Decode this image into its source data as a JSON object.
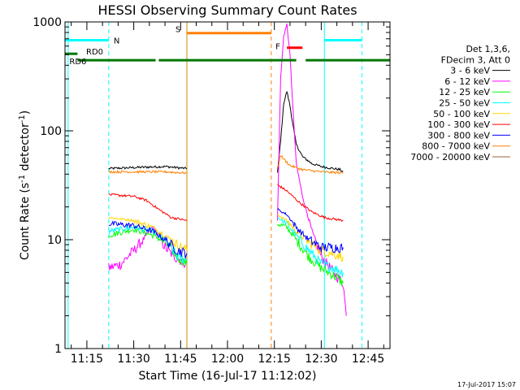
{
  "chart_data": {
    "type": "line",
    "title": "HESSI Observing Summary Count Rates",
    "xlabel": "Start Time (16-Jul-17 11:12:02)",
    "ylabel": "Count Rate (s⁻¹ detector⁻¹)",
    "ylabel_parts": {
      "main": "Count Rate (s",
      "sup1": "-1",
      "mid": " detector",
      "sup2": "-1",
      "end": ")"
    },
    "xlim": [
      "11:08",
      "12:52"
    ],
    "ylim": [
      1,
      1000
    ],
    "yscale": "log",
    "xticks": [
      "11:15",
      "11:30",
      "11:45",
      "12:00",
      "12:15",
      "12:30",
      "12:45"
    ],
    "yticks": [
      "1",
      "10",
      "100",
      "1000"
    ],
    "legend": {
      "placement": "right",
      "header": [
        "Det 1,3,6,",
        "FDecim 3, Att 0"
      ],
      "entries": [
        {
          "label": "3 - 6 keV",
          "color": "#000000"
        },
        {
          "label": "6 - 12 keV",
          "color": "#ff00ff"
        },
        {
          "label": "12 - 25 keV",
          "color": "#00ff00"
        },
        {
          "label": "25 - 50 keV",
          "color": "#00ffff"
        },
        {
          "label": "50 - 100 keV",
          "color": "#ffd700"
        },
        {
          "label": "100 - 300 keV",
          "color": "#ff0000"
        },
        {
          "label": "300 - 800 keV",
          "color": "#0000ff"
        },
        {
          "label": "800 - 7000 keV",
          "color": "#ff8000"
        },
        {
          "label": "7000 - 20000 keV",
          "color": "#996633"
        }
      ]
    },
    "series": [
      {
        "name": "3 - 6 keV",
        "color": "#000000",
        "segments": [
          [
            [
              "11:22",
              45
            ],
            [
              "11:30",
              46
            ],
            [
              "11:40",
              47
            ],
            [
              "11:47",
              45
            ]
          ],
          [
            [
              "12:16",
              42
            ],
            [
              "12:17",
              80
            ],
            [
              "12:18",
              180
            ],
            [
              "12:19",
              230
            ],
            [
              "12:20",
              170
            ],
            [
              "12:21",
              110
            ],
            [
              "12:22",
              75
            ],
            [
              "12:24",
              58
            ],
            [
              "12:27",
              50
            ],
            [
              "12:30",
              47
            ],
            [
              "12:36",
              44
            ],
            [
              "12:37",
              42
            ]
          ]
        ]
      },
      {
        "name": "6 - 12 keV",
        "color": "#ff00ff",
        "segments": [
          [
            [
              "11:22",
              5.5
            ],
            [
              "11:26",
              6
            ],
            [
              "11:30",
              8
            ],
            [
              "11:33",
              10
            ],
            [
              "11:36",
              13
            ],
            [
              "11:38",
              11
            ],
            [
              "11:40",
              8.5
            ],
            [
              "11:43",
              7
            ],
            [
              "11:47",
              6
            ]
          ],
          [
            [
              "12:16",
              15
            ],
            [
              "12:17",
              300
            ],
            [
              "12:18",
              750
            ],
            [
              "12:19",
              950
            ],
            [
              "12:20",
              500
            ],
            [
              "12:21",
              150
            ],
            [
              "12:22",
              50
            ],
            [
              "12:24",
              25
            ],
            [
              "12:27",
              12
            ],
            [
              "12:30",
              7
            ],
            [
              "12:34",
              5
            ],
            [
              "12:37",
              4
            ],
            [
              "12:38",
              2
            ]
          ]
        ]
      },
      {
        "name": "12 - 25 keV",
        "color": "#00ff00",
        "segments": [
          [
            [
              "11:22",
              11
            ],
            [
              "11:30",
              12.5
            ],
            [
              "11:36",
              11
            ],
            [
              "11:40",
              9.5
            ],
            [
              "11:44",
              7
            ],
            [
              "11:47",
              6
            ]
          ],
          [
            [
              "12:16",
              14
            ],
            [
              "12:19",
              13
            ],
            [
              "12:22",
              10
            ],
            [
              "12:26",
              7
            ],
            [
              "12:30",
              5.5
            ],
            [
              "12:35",
              4.5
            ],
            [
              "12:37",
              4
            ]
          ]
        ]
      },
      {
        "name": "25 - 50 keV",
        "color": "#00ffff",
        "segments": [
          [
            [
              "11:22",
              12
            ],
            [
              "11:30",
              13
            ],
            [
              "11:36",
              12
            ],
            [
              "11:40",
              10
            ],
            [
              "11:44",
              7
            ],
            [
              "11:47",
              6.5
            ]
          ],
          [
            [
              "12:16",
              16
            ],
            [
              "12:19",
              14
            ],
            [
              "12:22",
              11
            ],
            [
              "12:26",
              8
            ],
            [
              "12:30",
              6
            ],
            [
              "12:34",
              5.5
            ],
            [
              "12:37",
              5
            ]
          ]
        ]
      },
      {
        "name": "50 - 100 keV",
        "color": "#ffd700",
        "segments": [
          [
            [
              "11:22",
              16
            ],
            [
              "11:30",
              15
            ],
            [
              "11:36",
              13
            ],
            [
              "11:40",
              11
            ],
            [
              "11:44",
              9
            ],
            [
              "11:47",
              8
            ]
          ],
          [
            [
              "12:16",
              17
            ],
            [
              "12:19",
              15
            ],
            [
              "12:22",
              12
            ],
            [
              "12:26",
              9.5
            ],
            [
              "12:30",
              8
            ],
            [
              "12:37",
              7
            ]
          ]
        ]
      },
      {
        "name": "100 - 300 keV",
        "color": "#ff0000",
        "segments": [
          [
            [
              "11:22",
              26
            ],
            [
              "11:30",
              25
            ],
            [
              "11:34",
              23
            ],
            [
              "11:38",
              19
            ],
            [
              "11:42",
              16
            ],
            [
              "11:47",
              15
            ]
          ],
          [
            [
              "12:16",
              32
            ],
            [
              "12:19",
              28
            ],
            [
              "12:23",
              22
            ],
            [
              "12:27",
              18
            ],
            [
              "12:31",
              16
            ],
            [
              "12:37",
              15
            ]
          ]
        ]
      },
      {
        "name": "300 - 800 keV",
        "color": "#0000ff",
        "segments": [
          [
            [
              "11:22",
              14
            ],
            [
              "11:30",
              13.5
            ],
            [
              "11:36",
              12
            ],
            [
              "11:40",
              10
            ],
            [
              "11:44",
              8
            ],
            [
              "11:47",
              7.5
            ]
          ],
          [
            [
              "12:16",
              19
            ],
            [
              "12:19",
              17
            ],
            [
              "12:22",
              13
            ],
            [
              "12:26",
              10
            ],
            [
              "12:30",
              8.5
            ],
            [
              "12:37",
              8.5
            ]
          ]
        ]
      },
      {
        "name": "800 - 7000 keV",
        "color": "#ff8000",
        "segments": [
          [
            [
              "11:22",
              42
            ],
            [
              "11:30",
              42
            ],
            [
              "11:40",
              42
            ],
            [
              "11:47",
              41
            ]
          ],
          [
            [
              "12:16",
              45
            ],
            [
              "12:17",
              60
            ],
            [
              "12:18",
              55
            ],
            [
              "12:20",
              48
            ],
            [
              "12:24",
              44
            ],
            [
              "12:30",
              42
            ],
            [
              "12:37",
              41
            ]
          ]
        ]
      },
      {
        "name": "7000 - 20000 keV",
        "color": "#996633",
        "segments": []
      }
    ],
    "vertical_lines": [
      {
        "t": "11:09",
        "color": "#00ffff",
        "style": "solid"
      },
      {
        "t": "11:22",
        "color": "#00ffff",
        "style": "dashed"
      },
      {
        "t": "11:47",
        "color": "#cc8800",
        "style": "solid"
      },
      {
        "t": "12:14",
        "color": "#ff8000",
        "style": "dashed"
      },
      {
        "t": "12:31",
        "color": "#00ffff",
        "style": "solid"
      },
      {
        "t": "12:43",
        "color": "#00ffff",
        "style": "dashed"
      }
    ],
    "flag_bars": [
      {
        "label": "N",
        "color": "#00ffff",
        "segments": [
          [
            "11:08",
            "11:22"
          ],
          [
            "12:31",
            "12:43"
          ]
        ],
        "level": 680
      },
      {
        "label": "S",
        "color": "#ff8000",
        "segments": [
          [
            "11:47",
            "12:14"
          ]
        ],
        "level": 790
      },
      {
        "label": "F",
        "color": "#ff0000",
        "segments": [
          [
            "12:19",
            "12:24"
          ]
        ],
        "level": 580
      },
      {
        "label": "RD0",
        "color": "#007700",
        "segments": [
          [
            "11:08",
            "11:12"
          ]
        ],
        "level": 510
      },
      {
        "label": "RD6",
        "color": "#007700",
        "segments": [
          [
            "11:12",
            "11:37"
          ],
          [
            "11:38",
            "12:14"
          ],
          [
            "12:14",
            "12:22"
          ],
          [
            "12:25",
            "12:52"
          ]
        ],
        "level": 445
      }
    ]
  },
  "footer": {
    "timestamp": "17-Jul-2017 15:07"
  }
}
